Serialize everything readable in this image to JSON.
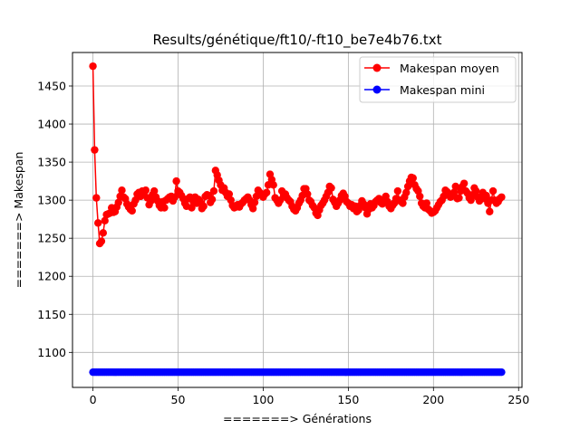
{
  "chart_data": {
    "type": "line",
    "title": "Results/génétique/ft10/-ft10_be7e4b76.txt",
    "xlabel": "=======> Générations",
    "ylabel": "=======> Makespan",
    "xlim": [
      -12,
      252
    ],
    "ylim": [
      1054,
      1494
    ],
    "xticks": [
      0,
      50,
      100,
      150,
      200,
      250
    ],
    "yticks": [
      1100,
      1150,
      1200,
      1250,
      1300,
      1350,
      1400,
      1450
    ],
    "grid": true,
    "legend_position": "top-right",
    "series": [
      {
        "name": "Makespan moyen",
        "color": "#ff0000",
        "x": [
          0,
          1,
          2,
          3,
          4,
          5,
          6,
          7,
          8,
          9,
          10,
          11,
          12,
          13,
          14,
          15,
          16,
          17,
          18,
          19,
          20,
          21,
          22,
          23,
          24,
          25,
          26,
          27,
          28,
          29,
          30,
          31,
          32,
          33,
          34,
          35,
          36,
          37,
          38,
          39,
          40,
          41,
          42,
          43,
          44,
          45,
          46,
          47,
          48,
          49,
          50,
          51,
          52,
          53,
          54,
          55,
          56,
          57,
          58,
          59,
          60,
          61,
          62,
          63,
          64,
          65,
          66,
          67,
          68,
          69,
          70,
          71,
          72,
          73,
          74,
          75,
          76,
          77,
          78,
          79,
          80,
          81,
          82,
          83,
          84,
          85,
          86,
          87,
          88,
          89,
          90,
          91,
          92,
          93,
          94,
          95,
          96,
          97,
          98,
          99,
          100,
          101,
          102,
          103,
          104,
          105,
          106,
          107,
          108,
          109,
          110,
          111,
          112,
          113,
          114,
          115,
          116,
          117,
          118,
          119,
          120,
          121,
          122,
          123,
          124,
          125,
          126,
          127,
          128,
          129,
          130,
          131,
          132,
          133,
          134,
          135,
          136,
          137,
          138,
          139,
          140,
          141,
          142,
          143,
          144,
          145,
          146,
          147,
          148,
          149,
          150,
          151,
          152,
          153,
          154,
          155,
          156,
          157,
          158,
          159,
          160,
          161,
          162,
          163,
          164,
          165,
          166,
          167,
          168,
          169,
          170,
          171,
          172,
          173,
          174,
          175,
          176,
          177,
          178,
          179,
          180,
          181,
          182,
          183,
          184,
          185,
          186,
          187,
          188,
          189,
          190,
          191,
          192,
          193,
          194,
          195,
          196,
          197,
          198,
          199,
          200,
          201,
          202,
          203,
          204,
          205,
          206,
          207,
          208,
          209,
          210,
          211,
          212,
          213,
          214,
          215,
          216,
          217,
          218,
          219,
          220,
          221,
          222,
          223,
          224,
          225,
          226,
          227,
          228,
          229,
          230,
          231,
          232,
          233,
          234,
          235,
          236,
          237,
          238,
          239,
          240
        ],
        "y": [
          1476,
          1366,
          1303,
          1270,
          1243,
          1246,
          1257,
          1273,
          1281,
          1282,
          1283,
          1290,
          1284,
          1285,
          1291,
          1297,
          1305,
          1313,
          1304,
          1302,
          1295,
          1291,
          1288,
          1286,
          1295,
          1300,
          1308,
          1310,
          1305,
          1312,
          1310,
          1313,
          1303,
          1294,
          1299,
          1307,
          1312,
          1304,
          1299,
          1293,
          1290,
          1298,
          1290,
          1300,
          1302,
          1304,
          1305,
          1299,
          1304,
          1325,
          1312,
          1310,
          1306,
          1302,
          1296,
          1292,
          1302,
          1304,
          1290,
          1298,
          1304,
          1296,
          1301,
          1298,
          1289,
          1292,
          1305,
          1307,
          1306,
          1297,
          1301,
          1312,
          1339,
          1333,
          1326,
          1320,
          1313,
          1316,
          1310,
          1305,
          1308,
          1300,
          1293,
          1290,
          1291,
          1294,
          1291,
          1295,
          1297,
          1300,
          1302,
          1304,
          1300,
          1294,
          1289,
          1297,
          1305,
          1313,
          1310,
          1307,
          1304,
          1308,
          1310,
          1320,
          1334,
          1327,
          1320,
          1303,
          1300,
          1296,
          1300,
          1312,
          1306,
          1308,
          1303,
          1300,
          1298,
          1292,
          1288,
          1286,
          1290,
          1296,
          1300,
          1306,
          1315,
          1315,
          1308,
          1300,
          1298,
          1293,
          1290,
          1283,
          1280,
          1287,
          1293,
          1296,
          1300,
          1305,
          1310,
          1318,
          1316,
          1301,
          1297,
          1292,
          1296,
          1300,
          1306,
          1309,
          1305,
          1298,
          1296,
          1292,
          1294,
          1289,
          1292,
          1285,
          1287,
          1293,
          1299,
          1295,
          1290,
          1282,
          1288,
          1295,
          1290,
          1293,
          1298,
          1300,
          1302,
          1297,
          1295,
          1300,
          1305,
          1298,
          1292,
          1289,
          1293,
          1296,
          1302,
          1312,
          1300,
          1298,
          1296,
          1304,
          1310,
          1318,
          1325,
          1330,
          1329,
          1320,
          1315,
          1312,
          1305,
          1296,
          1292,
          1290,
          1296,
          1288,
          1286,
          1283,
          1284,
          1286,
          1290,
          1294,
          1298,
          1300,
          1305,
          1313,
          1311,
          1308,
          1304,
          1308,
          1310,
          1318,
          1302,
          1303,
          1312,
          1318,
          1322,
          1312,
          1309,
          1303,
          1300,
          1307,
          1316,
          1312,
          1304,
          1299,
          1304,
          1310,
          1302,
          1306,
          1296,
          1285,
          1300,
          1312,
          1300,
          1296,
          1298,
          1302,
          1304
        ]
      },
      {
        "name": "Makespan mini",
        "color": "#0000ff",
        "x_start": 0,
        "x_end": 240,
        "value": 1074
      }
    ]
  }
}
